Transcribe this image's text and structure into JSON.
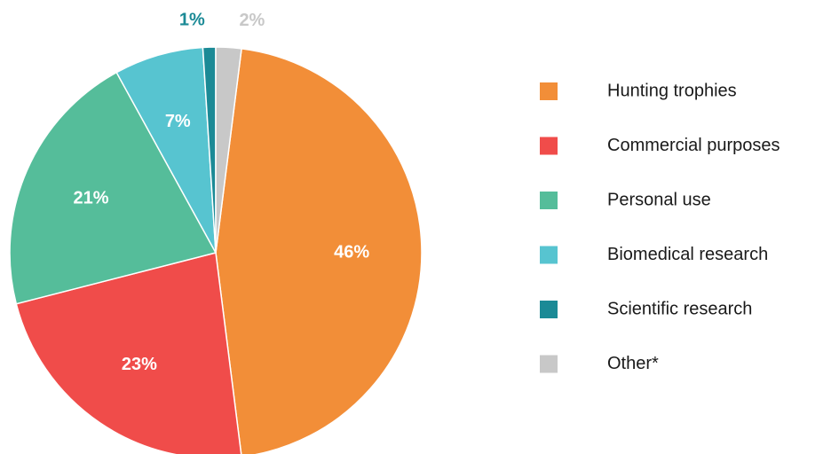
{
  "chart_data": {
    "type": "pie",
    "categories": [
      "Hunting trophies",
      "Commercial purposes",
      "Personal use",
      "Biomedical research",
      "Scientific research",
      "Other*"
    ],
    "values": [
      46,
      23,
      21,
      7,
      1,
      2
    ],
    "value_labels": [
      "46%",
      "23%",
      "21%",
      "7%",
      "1%",
      "2%"
    ],
    "colors": [
      "#f28e38",
      "#f04c4a",
      "#55bd9a",
      "#57c4d0",
      "#1b8a96",
      "#c8c8c8"
    ],
    "legend": "right"
  }
}
